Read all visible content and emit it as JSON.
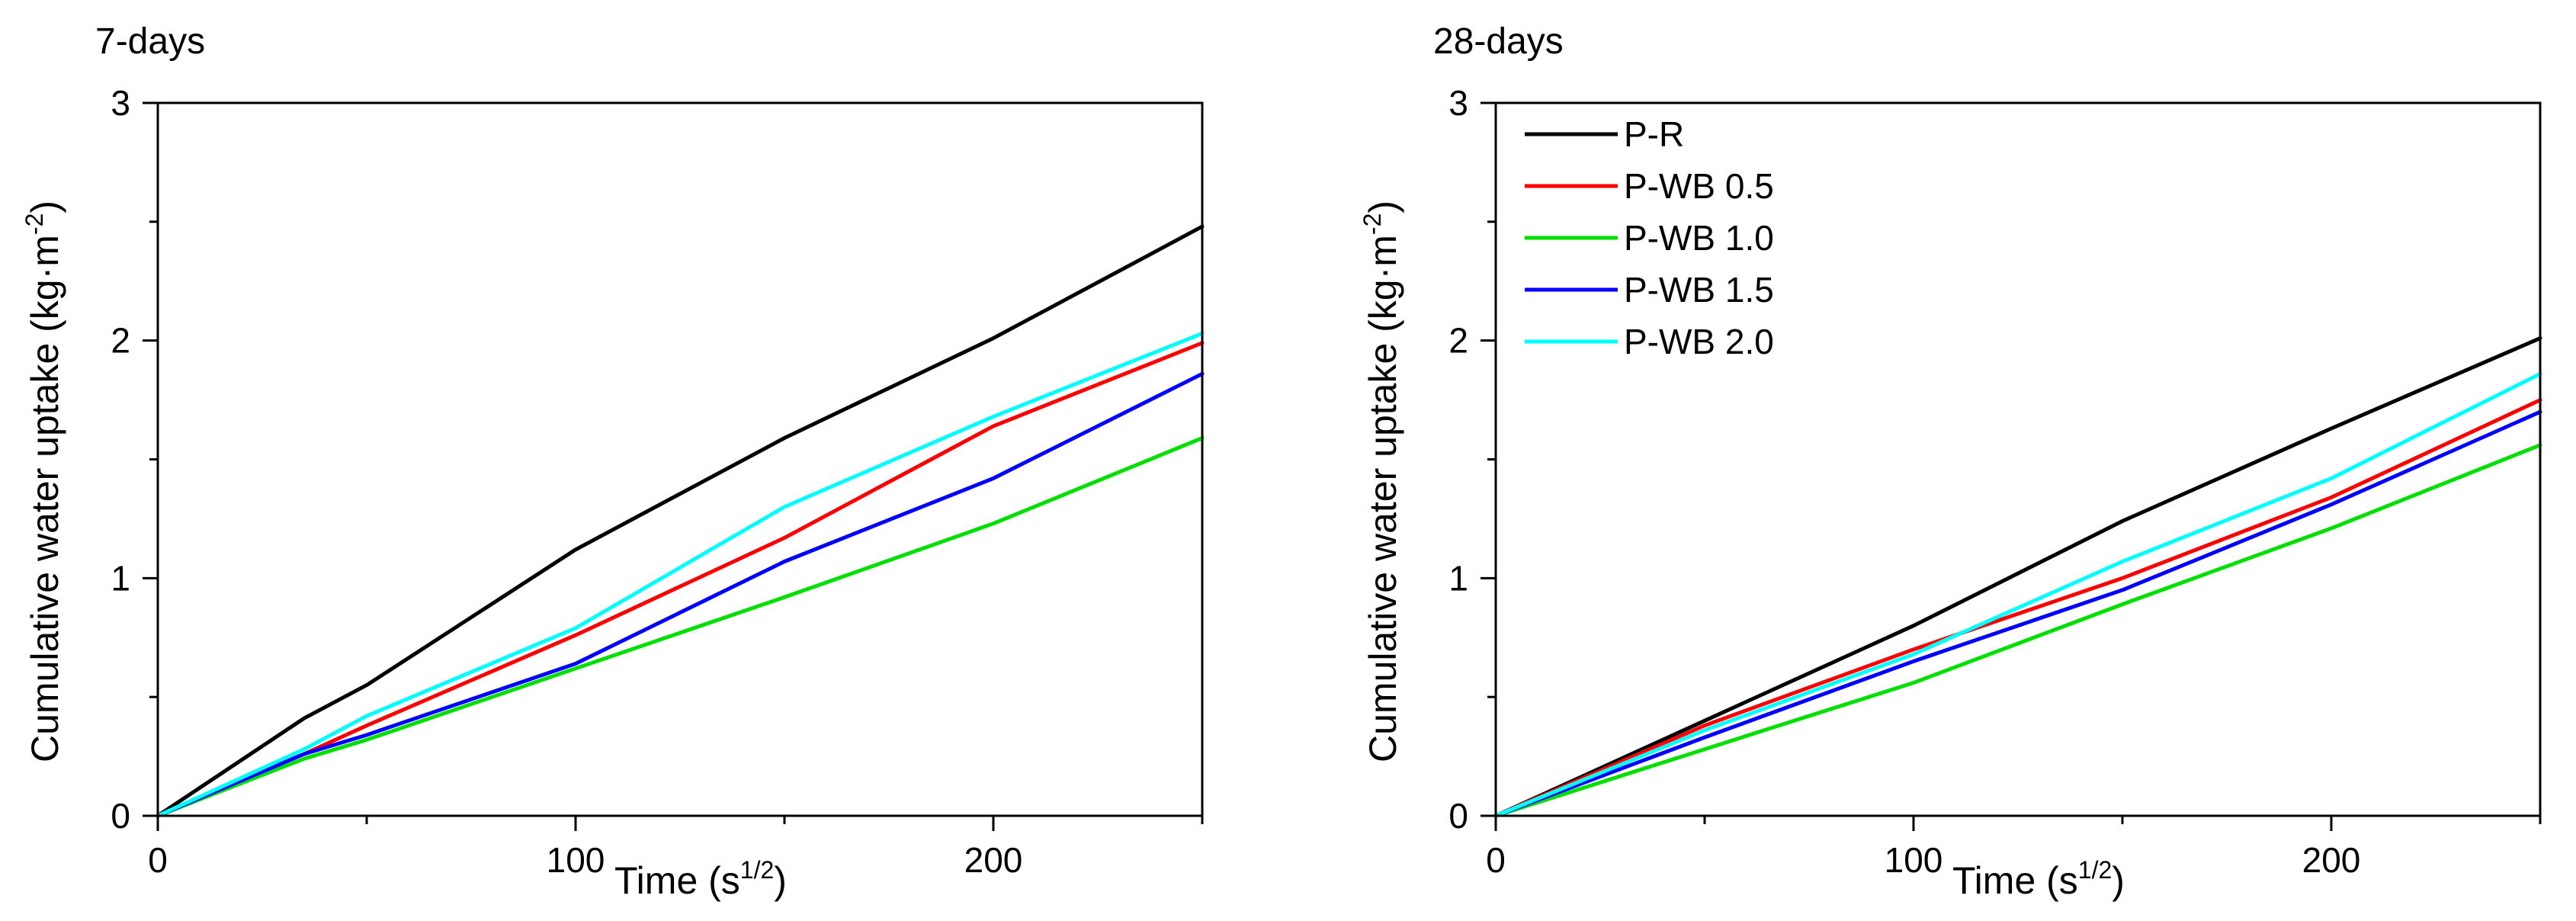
{
  "chart_data": [
    {
      "type": "line",
      "title": "7-days",
      "xlabel": "Time (s",
      "xlabel_sup": "1/2",
      "xlabel_end": ")",
      "ylabel": "Cumulative water uptake (kg·m",
      "ylabel_sup": "-2",
      "ylabel_end": ")",
      "xlim": [
        0,
        250
      ],
      "ylim": [
        0,
        3
      ],
      "xticks": [
        0,
        100,
        200
      ],
      "yticks": [
        0,
        1,
        2,
        3
      ],
      "legend": false,
      "x": [
        0,
        35,
        50,
        100,
        150,
        200,
        250
      ],
      "series": [
        {
          "name": "P-R",
          "color": "#000000",
          "values": [
            0,
            0.41,
            0.55,
            1.12,
            1.59,
            2.01,
            2.48
          ]
        },
        {
          "name": "P-WB 0.5",
          "color": "#ff0000",
          "values": [
            0,
            0.26,
            0.38,
            0.76,
            1.17,
            1.64,
            1.99
          ]
        },
        {
          "name": "P-WB 1.0",
          "color": "#00e000",
          "values": [
            0,
            0.24,
            0.32,
            0.62,
            0.92,
            1.23,
            1.59
          ]
        },
        {
          "name": "P-WB 1.5",
          "color": "#0000ff",
          "values": [
            0,
            0.26,
            0.34,
            0.64,
            1.07,
            1.42,
            1.86
          ]
        },
        {
          "name": "P-WB 2.0",
          "color": "#00ffff",
          "values": [
            0,
            0.28,
            0.42,
            0.79,
            1.3,
            1.68,
            2.03
          ]
        }
      ]
    },
    {
      "type": "line",
      "title": "28-days",
      "xlabel": "Time (s",
      "xlabel_sup": "1/2",
      "xlabel_end": ")",
      "ylabel": "Cumulative water uptake (kg·m",
      "ylabel_sup": "-2",
      "ylabel_end": ")",
      "xlim": [
        0,
        250
      ],
      "ylim": [
        0,
        3
      ],
      "xticks": [
        0,
        100,
        200
      ],
      "yticks": [
        0,
        1,
        2,
        3
      ],
      "legend": true,
      "legend_position": "top-left",
      "x": [
        0,
        50,
        100,
        150,
        200,
        250
      ],
      "series": [
        {
          "name": "P-R",
          "color": "#000000",
          "values": [
            0,
            0.4,
            0.8,
            1.24,
            1.63,
            2.01
          ]
        },
        {
          "name": "P-WB 0.5",
          "color": "#ff0000",
          "values": [
            0,
            0.38,
            0.7,
            1.0,
            1.34,
            1.75
          ]
        },
        {
          "name": "P-WB 1.0",
          "color": "#00e000",
          "values": [
            0,
            0.28,
            0.56,
            0.89,
            1.21,
            1.56
          ]
        },
        {
          "name": "P-WB 1.5",
          "color": "#0000ff",
          "values": [
            0,
            0.33,
            0.65,
            0.95,
            1.31,
            1.7
          ]
        },
        {
          "name": "P-WB 2.0",
          "color": "#00ffff",
          "values": [
            0,
            0.36,
            0.68,
            1.07,
            1.42,
            1.86
          ]
        }
      ]
    }
  ]
}
